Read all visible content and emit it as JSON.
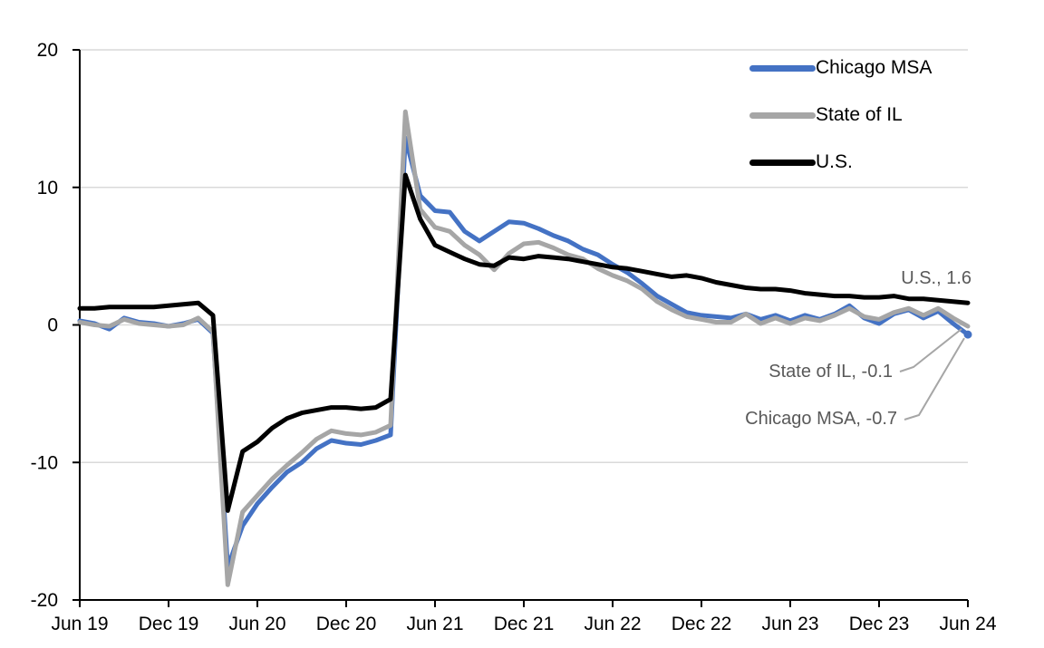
{
  "chart_data": {
    "type": "line",
    "title": "",
    "xlabel": "",
    "ylabel": "",
    "x_frequency": "monthly",
    "x_start": "Jun 2019",
    "x_end": "Jun 2024",
    "x_tick_labels": [
      "Jun 19",
      "Dec 19",
      "Jun 20",
      "Dec 20",
      "Jun 21",
      "Dec 21",
      "Jun 22",
      "Dec 22",
      "Jun 23",
      "Dec 23",
      "Jun 24"
    ],
    "x_tick_interval_months": 6,
    "y_ticks": [
      20,
      10,
      0,
      -10,
      -20
    ],
    "ylim": [
      -20,
      20
    ],
    "grid": true,
    "legend_position": "top-right",
    "series": [
      {
        "name": "Chicago MSA",
        "color": "#4472C4",
        "end_value": -0.7,
        "end_marker": true,
        "values": [
          0.3,
          0.1,
          -0.3,
          0.5,
          0.2,
          0.1,
          -0.1,
          0.1,
          0.4,
          -0.6,
          -17.6,
          -14.6,
          -13.0,
          -11.8,
          -10.7,
          -10.0,
          -9.0,
          -8.4,
          -8.6,
          -8.7,
          -8.4,
          -8.0,
          13.6,
          9.4,
          8.3,
          8.2,
          6.8,
          6.1,
          6.8,
          7.5,
          7.4,
          7.0,
          6.5,
          6.1,
          5.5,
          5.1,
          4.4,
          3.8,
          3.0,
          2.1,
          1.5,
          0.9,
          0.7,
          0.6,
          0.5,
          0.8,
          0.4,
          0.7,
          0.3,
          0.7,
          0.4,
          0.8,
          1.4,
          0.5,
          0.1,
          0.8,
          1.1,
          0.5,
          1.0,
          0.1,
          -0.7
        ]
      },
      {
        "name": "State of IL",
        "color": "#A6A6A6",
        "end_value": -0.1,
        "end_marker": false,
        "values": [
          0.2,
          0.0,
          -0.1,
          0.4,
          0.1,
          0.0,
          -0.1,
          0.0,
          0.5,
          -0.5,
          -18.9,
          -13.6,
          -12.4,
          -11.2,
          -10.2,
          -9.3,
          -8.3,
          -7.7,
          -7.9,
          -8.0,
          -7.8,
          -7.3,
          15.5,
          8.4,
          7.1,
          6.8,
          5.8,
          5.1,
          4.0,
          5.2,
          5.9,
          6.0,
          5.6,
          5.1,
          4.8,
          4.1,
          3.6,
          3.2,
          2.6,
          1.7,
          1.1,
          0.6,
          0.4,
          0.2,
          0.2,
          0.8,
          0.1,
          0.5,
          0.1,
          0.5,
          0.3,
          0.7,
          1.2,
          0.6,
          0.4,
          0.9,
          1.2,
          0.7,
          1.2,
          0.5,
          -0.1
        ]
      },
      {
        "name": "U.S.",
        "color": "#000000",
        "end_value": 1.6,
        "end_marker": false,
        "values": [
          1.2,
          1.2,
          1.3,
          1.3,
          1.3,
          1.3,
          1.4,
          1.5,
          1.6,
          0.7,
          -13.5,
          -9.2,
          -8.5,
          -7.5,
          -6.8,
          -6.4,
          -6.2,
          -6.0,
          -6.0,
          -6.1,
          -6.0,
          -5.4,
          10.9,
          7.7,
          5.8,
          5.3,
          4.8,
          4.4,
          4.3,
          4.9,
          4.8,
          5.0,
          4.9,
          4.8,
          4.6,
          4.4,
          4.2,
          4.1,
          3.9,
          3.7,
          3.5,
          3.6,
          3.4,
          3.1,
          2.9,
          2.7,
          2.6,
          2.6,
          2.5,
          2.3,
          2.2,
          2.1,
          2.1,
          2.0,
          2.0,
          2.1,
          1.9,
          1.9,
          1.8,
          1.7,
          1.6
        ]
      }
    ]
  },
  "annotations": {
    "us": "U.S., 1.6",
    "il": "State of IL, -0.1",
    "chicago": "Chicago MSA, -0.7"
  },
  "colors": {
    "gridline": "#D9D9D9",
    "axis": "#000000",
    "annotation_text": "#595959",
    "leader_line": "#A6A6A6",
    "background": "#FFFFFF"
  }
}
